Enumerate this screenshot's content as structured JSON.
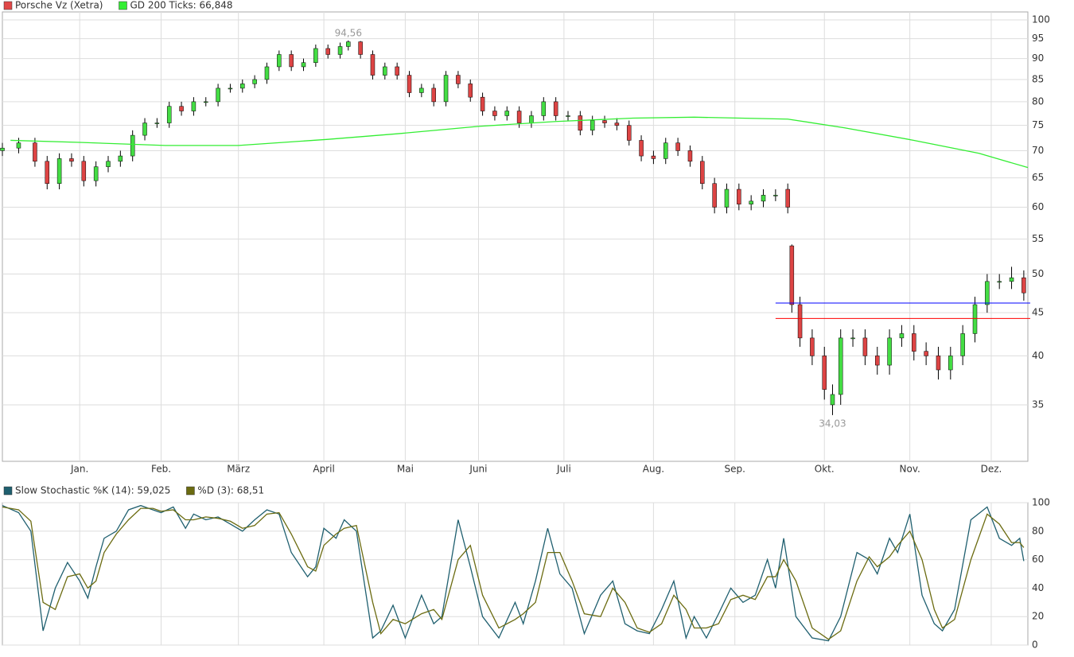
{
  "chart_data": [
    {
      "type": "candlestick",
      "log_scale": true,
      "grid": true,
      "xlim": [
        0,
        252
      ],
      "ylim": [
        30,
        102.2
      ],
      "yticks": [
        35,
        40,
        45,
        50,
        55,
        60,
        65,
        70,
        75,
        80,
        85,
        90,
        95,
        100
      ],
      "xticks": [
        {
          "value": 19,
          "label": "Jan."
        },
        {
          "value": 39,
          "label": "Feb."
        },
        {
          "value": 58,
          "label": "März"
        },
        {
          "value": 79,
          "label": "April"
        },
        {
          "value": 99,
          "label": "Mai"
        },
        {
          "value": 117,
          "label": "Juni"
        },
        {
          "value": 138,
          "label": "Juli"
        },
        {
          "value": 160,
          "label": "Aug."
        },
        {
          "value": 180,
          "label": "Sep."
        },
        {
          "value": 202,
          "label": "Okt."
        },
        {
          "value": 223,
          "label": "Nov."
        },
        {
          "value": 243,
          "label": "Dez."
        }
      ],
      "series": [
        {
          "name": "Porsche Vz (Xetra)",
          "color": "#e04848",
          "up_color": "#44dd44",
          "down_color": "#dd4444",
          "x": [
            0,
            4,
            8,
            11,
            14,
            17,
            20,
            23,
            26,
            29,
            32,
            35,
            38,
            41,
            44,
            47,
            50,
            53,
            56,
            59,
            62,
            65,
            68,
            71,
            74,
            77,
            80,
            83,
            85,
            88,
            91,
            94,
            97,
            100,
            103,
            106,
            109,
            112,
            115,
            118,
            121,
            124,
            127,
            130,
            133,
            136,
            139,
            142,
            145,
            148,
            151,
            154,
            157,
            160,
            163,
            166,
            169,
            172,
            175,
            178,
            181,
            184,
            187,
            190,
            193,
            194,
            196,
            199,
            202,
            204,
            206,
            209,
            212,
            215,
            218,
            221,
            224,
            227,
            230,
            233,
            236,
            239,
            242,
            245,
            248,
            251
          ],
          "open": [
            70,
            70.5,
            71.5,
            68,
            64,
            68.5,
            68,
            64.5,
            67,
            68,
            69,
            73,
            75.5,
            75.5,
            79,
            78,
            80,
            80,
            83,
            83,
            84,
            85,
            88,
            91,
            88,
            89,
            92.5,
            91,
            93,
            94.2,
            91,
            86,
            88,
            86,
            82,
            83,
            80,
            86,
            84,
            81,
            78,
            77,
            78,
            75.5,
            77,
            80,
            77,
            77,
            74,
            76,
            75.5,
            75,
            72,
            69,
            68.5,
            71.5,
            70,
            68,
            64,
            60,
            63,
            60.5,
            61,
            62,
            63,
            54,
            46,
            42,
            40,
            35,
            36,
            42,
            42,
            40,
            39,
            42,
            42.5,
            40.5,
            40,
            38.5,
            40,
            42.5,
            46,
            49,
            49,
            49.5
          ],
          "high": [
            71.5,
            72.5,
            72.5,
            69,
            69.5,
            69.5,
            69,
            68,
            69,
            70,
            74,
            76.5,
            76.5,
            80,
            80,
            81,
            81,
            84,
            84,
            85,
            86,
            89,
            92,
            92,
            90,
            93.5,
            93.5,
            94,
            94.56,
            94.4,
            92,
            89,
            89,
            87,
            84,
            84,
            87,
            87,
            85,
            82,
            79,
            79,
            79,
            78,
            81,
            81,
            78,
            78,
            77,
            77,
            76.5,
            76,
            73,
            70,
            72.5,
            72.5,
            71,
            69,
            65,
            64,
            64,
            62,
            63,
            63,
            64,
            54.2,
            47,
            43,
            41,
            37,
            43,
            43,
            43,
            41,
            43,
            43.5,
            43.5,
            41.5,
            41,
            41,
            43.5,
            47,
            50,
            50,
            51,
            50.5
          ],
          "low": [
            69,
            69.5,
            67,
            63,
            63,
            67,
            63.5,
            63.5,
            66,
            67,
            68,
            72,
            74.5,
            74.5,
            77,
            77,
            79,
            79,
            82,
            82,
            83,
            84,
            87,
            87,
            87,
            88,
            90,
            90,
            92,
            90,
            85,
            85,
            85,
            81,
            81,
            79,
            79,
            83,
            80,
            77,
            76,
            76,
            74.5,
            74.5,
            76,
            76,
            76,
            73,
            73,
            74.5,
            74,
            71,
            68,
            67.5,
            67.5,
            69,
            67,
            63,
            59,
            59,
            59.5,
            59.5,
            60,
            61,
            59,
            45,
            41,
            39,
            35.5,
            34.03,
            35,
            41,
            39,
            38,
            38,
            41,
            39.5,
            39,
            37.5,
            37.5,
            39,
            41.5,
            45,
            48,
            48,
            46.5
          ],
          "close": [
            70.5,
            71.5,
            68,
            64,
            68.5,
            68,
            64.5,
            67,
            68,
            69,
            73,
            75.5,
            75.5,
            79,
            78,
            80,
            80,
            83,
            83,
            84,
            85,
            88,
            91,
            88,
            89,
            92.5,
            91,
            93,
            94.2,
            91,
            86,
            88,
            86,
            82,
            83,
            80,
            86,
            84,
            81,
            78,
            77,
            78,
            75.5,
            77,
            80,
            77,
            77,
            74,
            76,
            75.5,
            75,
            72,
            69,
            68.5,
            71.5,
            70,
            68,
            64,
            60,
            63,
            60.5,
            61,
            62,
            62,
            60,
            46,
            42,
            40,
            36.5,
            36,
            42,
            42,
            40,
            39,
            42,
            42.5,
            40.5,
            40,
            38.5,
            40,
            42.5,
            46,
            49,
            49,
            49.5,
            47.5
          ]
        },
        {
          "name": "GD 200 Ticks: 66,848",
          "color": "#33ee33",
          "x": [
            2,
            19,
            40,
            58,
            80,
            97,
            117,
            136,
            155,
            170,
            193,
            207,
            224,
            240,
            252
          ],
          "values": [
            72,
            71.6,
            71,
            71,
            72.2,
            73.3,
            74.8,
            75.8,
            76.5,
            76.7,
            76.3,
            74.5,
            72,
            69.5,
            66.848
          ]
        }
      ],
      "annotations": [
        {
          "value": 94.56,
          "label": "94,56",
          "x": 85
        },
        {
          "value": 34.03,
          "label": "34,03",
          "x": 204
        }
      ],
      "horizontal_lines": [
        {
          "value": 46.2,
          "color": "#0000ff",
          "x_from": 190
        },
        {
          "value": 44.3,
          "color": "#ff0000",
          "x_from": 190
        }
      ]
    },
    {
      "type": "line",
      "grid": true,
      "xlim": [
        0,
        252
      ],
      "ylim": [
        0,
        100
      ],
      "yticks": [
        0,
        20,
        40,
        60,
        80,
        100
      ],
      "x": [
        0,
        4,
        7,
        10,
        13,
        16,
        19,
        21,
        23,
        25,
        28,
        31,
        34,
        37,
        39,
        42,
        45,
        47,
        50,
        53,
        56,
        59,
        62,
        65,
        68,
        71,
        75,
        77,
        79,
        82,
        84,
        87,
        91,
        93,
        96,
        99,
        103,
        106,
        108,
        112,
        115,
        118,
        122,
        126,
        128,
        131,
        134,
        137,
        140,
        143,
        147,
        150,
        153,
        156,
        159,
        162,
        165,
        168,
        170,
        173,
        176,
        179,
        182,
        185,
        188,
        190,
        192,
        195,
        199,
        203,
        206,
        210,
        213,
        215,
        218,
        220,
        223,
        226,
        229,
        231,
        234,
        238,
        242,
        245,
        248,
        250,
        251
      ],
      "series": [
        {
          "name": "Slow Stochastic %K (14): 59,025",
          "color": "#1f5f6f",
          "values": [
            98,
            93,
            80,
            10,
            40,
            58,
            45,
            33,
            55,
            75,
            80,
            95,
            98,
            95,
            93,
            97,
            82,
            92,
            88,
            90,
            85,
            80,
            88,
            95,
            92,
            65,
            48,
            55,
            82,
            75,
            88,
            80,
            5,
            10,
            28,
            5,
            35,
            15,
            20,
            88,
            55,
            20,
            5,
            30,
            15,
            45,
            82,
            50,
            40,
            8,
            35,
            45,
            15,
            10,
            8,
            25,
            45,
            5,
            20,
            5,
            22,
            40,
            30,
            35,
            60,
            40,
            75,
            20,
            5,
            3,
            20,
            65,
            60,
            50,
            75,
            65,
            92,
            35,
            15,
            10,
            25,
            88,
            97,
            75,
            70,
            75,
            59.025
          ]
        },
        {
          "name": "%D (3): 68,51",
          "color": "#6b6b10",
          "values": [
            97,
            95,
            87,
            30,
            25,
            48,
            50,
            40,
            45,
            65,
            78,
            88,
            96,
            96,
            94,
            95,
            88,
            88,
            90,
            89,
            87,
            82,
            84,
            92,
            93,
            78,
            55,
            52,
            70,
            78,
            82,
            84,
            30,
            8,
            18,
            15,
            22,
            25,
            18,
            60,
            70,
            35,
            12,
            18,
            22,
            30,
            65,
            65,
            45,
            22,
            20,
            40,
            30,
            12,
            9,
            15,
            35,
            25,
            12,
            12,
            15,
            32,
            35,
            32,
            48,
            48,
            60,
            45,
            12,
            4,
            10,
            45,
            62,
            55,
            62,
            70,
            80,
            60,
            25,
            12,
            18,
            60,
            92,
            85,
            72,
            72,
            68.51
          ]
        }
      ]
    }
  ]
}
